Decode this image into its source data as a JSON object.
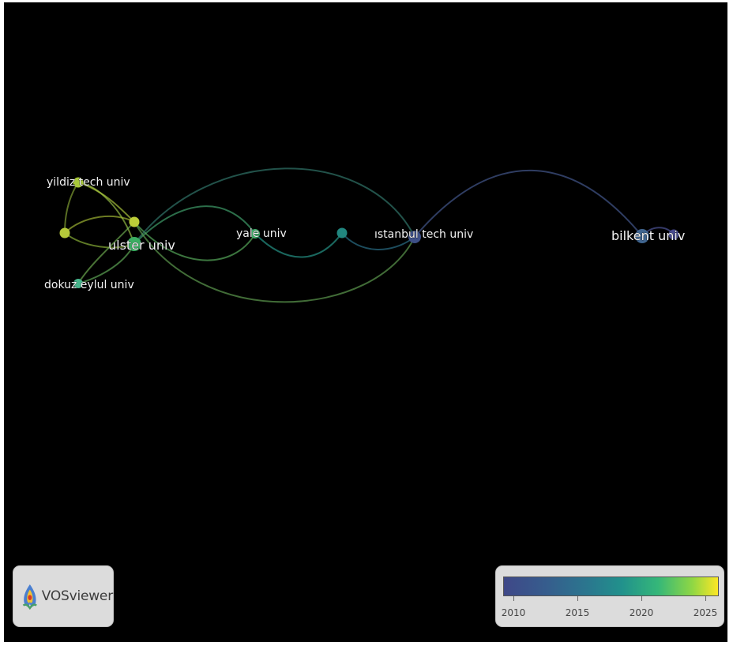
{
  "network": {
    "nodes": [
      {
        "id": "yildiz",
        "label": "yildiz tech univ",
        "year": 2021.5
      },
      {
        "id": "ulster",
        "label": "ulster univ",
        "year": 2019.5
      },
      {
        "id": "dokuz",
        "label": "dokuz eylul univ",
        "year": 2018.5
      },
      {
        "id": "unlabeled-left",
        "label": "",
        "year": 2023.0
      },
      {
        "id": "unlabeled-upper",
        "label": "",
        "year": 2022.5
      },
      {
        "id": "yale",
        "label": "yale univ",
        "year": 2019.0
      },
      {
        "id": "unlabeled-middle",
        "label": "",
        "year": 2016.0
      },
      {
        "id": "istanbul",
        "label": "ıstanbul tech univ",
        "year": 2010.5
      },
      {
        "id": "bilkent",
        "label": "bilkent univ",
        "year": 2011.5
      },
      {
        "id": "unlabeled-right",
        "label": "",
        "year": 2009.5
      }
    ],
    "links": [
      [
        "yildiz",
        "ulster"
      ],
      [
        "yildiz",
        "unlabeled-upper"
      ],
      [
        "yildiz",
        "unlabeled-left"
      ],
      [
        "unlabeled-left",
        "ulster"
      ],
      [
        "unlabeled-left",
        "unlabeled-upper"
      ],
      [
        "dokuz",
        "ulster"
      ],
      [
        "dokuz",
        "unlabeled-upper"
      ],
      [
        "ulster",
        "yale"
      ],
      [
        "unlabeled-upper",
        "yale"
      ],
      [
        "ulster",
        "istanbul"
      ],
      [
        "unlabeled-upper",
        "istanbul"
      ],
      [
        "yale",
        "unlabeled-middle"
      ],
      [
        "unlabeled-middle",
        "istanbul"
      ],
      [
        "istanbul",
        "bilkent"
      ],
      [
        "bilkent",
        "unlabeled-right"
      ]
    ]
  },
  "logo": {
    "text": "VOSviewer"
  },
  "legend": {
    "min": 2009,
    "max": 2026,
    "ticks": [
      "2010",
      "2015",
      "2020",
      "2025"
    ],
    "colors": {
      "start": "#3f4888",
      "mid": "#21918c",
      "end": "#fde725"
    }
  }
}
